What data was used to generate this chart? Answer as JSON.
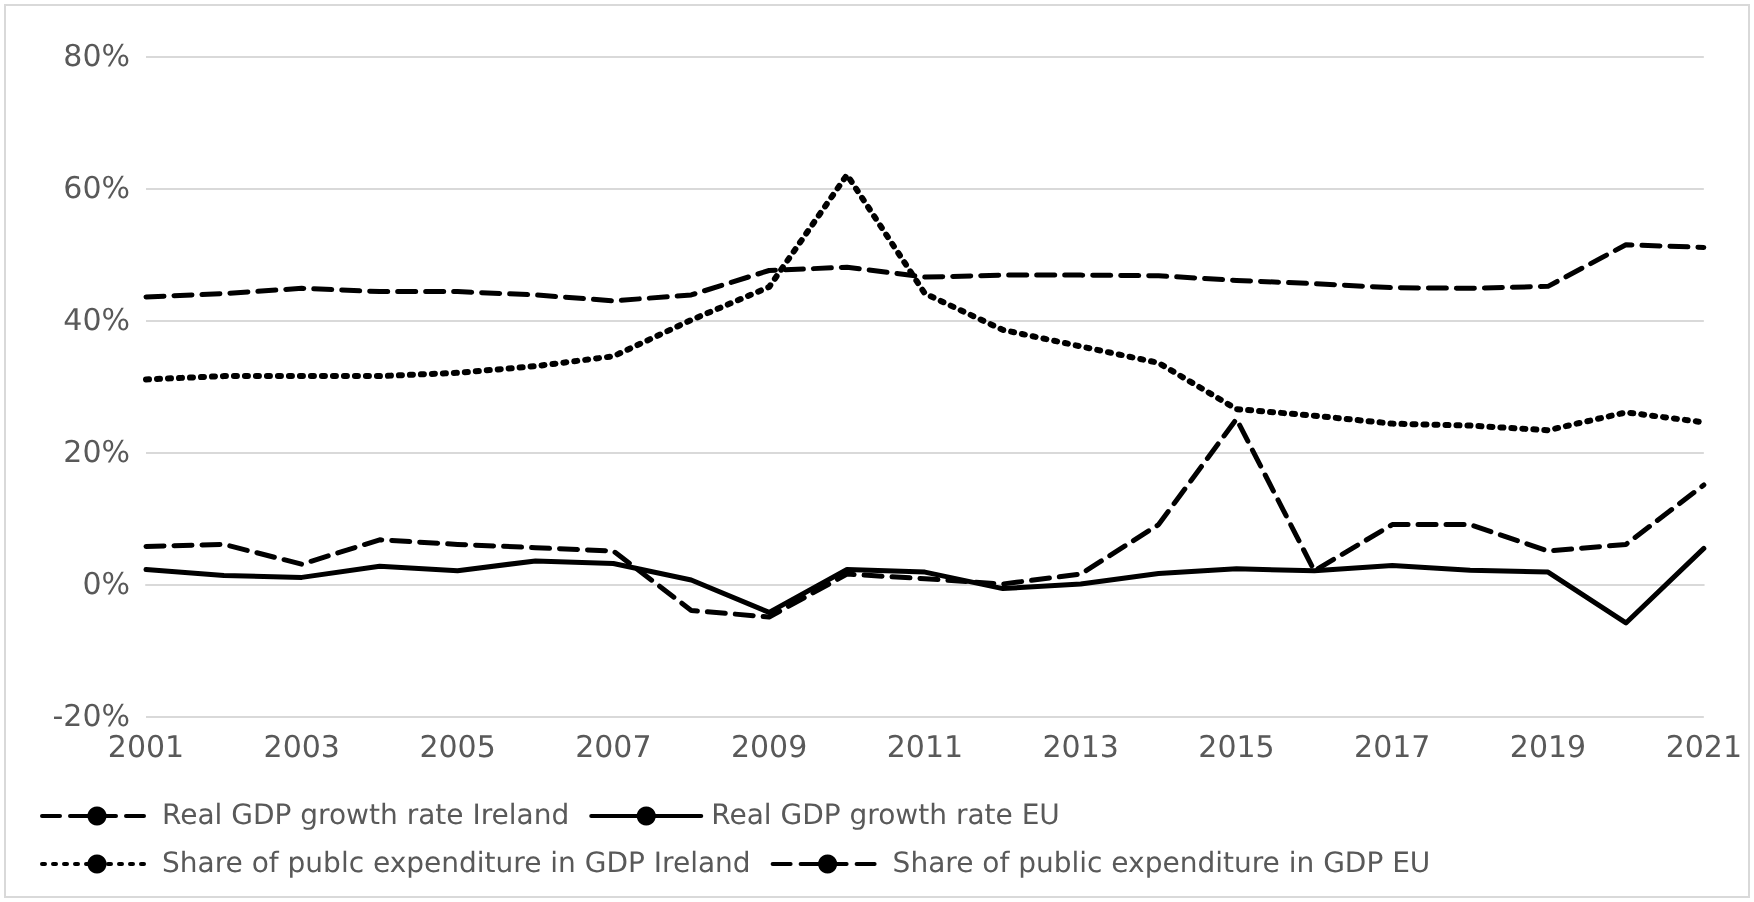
{
  "chart_data": {
    "type": "line",
    "categories": [
      "2001",
      null,
      "2003",
      null,
      "2005",
      null,
      "2007",
      null,
      "2009",
      null,
      "2011",
      null,
      "2013",
      null,
      "2015",
      null,
      "2017",
      null,
      "2019",
      null,
      "2021"
    ],
    "series": [
      {
        "name": "Real GDP growth rate Ireland",
        "color": "#000000",
        "line_style": "dashed",
        "values": [
          5.7,
          6,
          3,
          6.7,
          6,
          5.5,
          5,
          -4,
          -5,
          1.5,
          0.8,
          0,
          1.5,
          9,
          25,
          2,
          9,
          9,
          5,
          6,
          15
        ]
      },
      {
        "name": "Real GDP growth rate EU",
        "color": "#000000",
        "line_style": "solid",
        "values": [
          2.2,
          1.3,
          1,
          2.7,
          2,
          3.5,
          3.1,
          0.6,
          -4.3,
          2.2,
          1.8,
          -0.7,
          0,
          1.6,
          2.3,
          2,
          2.8,
          2.1,
          1.8,
          -5.9,
          5.4
        ]
      },
      {
        "name": "Share of publc expenditure in GDP Ireland",
        "color": "#000000",
        "line_style": "dotted",
        "values": [
          31,
          31.5,
          31.5,
          31.5,
          32,
          33,
          34.5,
          40,
          45,
          62,
          44,
          38.5,
          36,
          33.5,
          26.5,
          25.5,
          24.3,
          24,
          23.3,
          26,
          24.5
        ]
      },
      {
        "name": "Share of public expenditure in GDP EU",
        "color": "#000000",
        "line_style": "dashed",
        "values": [
          43.5,
          44,
          44.8,
          44.3,
          44.3,
          43.8,
          42.9,
          43.8,
          47.5,
          48,
          46.5,
          46.8,
          46.8,
          46.7,
          46,
          45.5,
          44.9,
          44.8,
          45.1,
          51.4,
          51
        ]
      }
    ],
    "ylim": [
      -20,
      80
    ],
    "yticks": [
      {
        "value": -20,
        "label": "-20%"
      },
      {
        "value": 0,
        "label": "0%"
      },
      {
        "value": 20,
        "label": "20%"
      },
      {
        "value": 40,
        "label": "40%"
      },
      {
        "value": 60,
        "label": "60%"
      },
      {
        "value": 80,
        "label": "80%"
      }
    ],
    "grid": "y",
    "legend": "bottom",
    "marker": "none"
  }
}
